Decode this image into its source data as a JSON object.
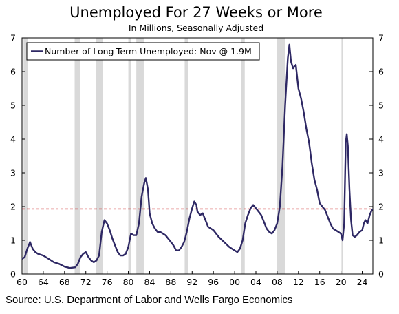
{
  "chart_data": {
    "type": "line",
    "title": "Unemployed For 27 Weeks or More",
    "subtitle": "In Millions, Seasonally Adjusted",
    "source": "Source: U.S. Department of Labor and Wells Fargo Economics",
    "xlim": [
      1960,
      2026
    ],
    "ylim": [
      0,
      7
    ],
    "y_ticks": [
      0,
      1,
      2,
      3,
      4,
      5,
      6,
      7
    ],
    "x_ticks": [
      1960,
      1964,
      1968,
      1972,
      1976,
      1980,
      1984,
      1988,
      1992,
      1996,
      2000,
      2004,
      2008,
      2012,
      2016,
      2020,
      2024
    ],
    "x_tick_labels": [
      "60",
      "64",
      "68",
      "72",
      "76",
      "80",
      "84",
      "88",
      "92",
      "96",
      "00",
      "04",
      "08",
      "12",
      "16",
      "20",
      "24"
    ],
    "colors": {
      "line": "#2e2864",
      "reference": "#cc2222",
      "recession": "#d9d9d9"
    },
    "legend": {
      "position": "top-left",
      "label": "Number of Long-Term Unemployed: Nov @ 1.9M"
    },
    "reference_line": {
      "y": 1.93
    },
    "recessions": [
      [
        1960.3,
        1961.1
      ],
      [
        1969.9,
        1970.9
      ],
      [
        1973.9,
        1975.2
      ],
      [
        1980.0,
        1980.5
      ],
      [
        1981.5,
        1982.9
      ],
      [
        1990.6,
        1991.2
      ],
      [
        2001.2,
        2001.9
      ],
      [
        2007.9,
        2009.5
      ],
      [
        2020.1,
        2020.3
      ]
    ],
    "series": [
      {
        "name": "Number of Long-Term Unemployed",
        "x": [
          1960.0,
          1960.5,
          1961.0,
          1961.5,
          1962.0,
          1962.5,
          1963.0,
          1964.0,
          1965.0,
          1966.0,
          1967.0,
          1968.0,
          1969.0,
          1970.0,
          1970.5,
          1971.0,
          1971.5,
          1972.0,
          1972.5,
          1973.0,
          1973.5,
          1974.0,
          1974.5,
          1975.0,
          1975.5,
          1976.0,
          1976.5,
          1977.0,
          1977.5,
          1978.0,
          1978.5,
          1979.0,
          1979.5,
          1980.0,
          1980.5,
          1981.0,
          1981.5,
          1982.0,
          1982.5,
          1983.0,
          1983.3,
          1983.7,
          1984.0,
          1984.5,
          1985.0,
          1985.5,
          1986.0,
          1987.0,
          1988.0,
          1988.5,
          1989.0,
          1989.5,
          1990.0,
          1990.5,
          1991.0,
          1991.5,
          1992.0,
          1992.4,
          1992.8,
          1993.0,
          1993.5,
          1994.0,
          1994.5,
          1995.0,
          1996.0,
          1997.0,
          1998.0,
          1999.0,
          2000.0,
          2000.5,
          2001.0,
          2001.5,
          2002.0,
          2002.5,
          2003.0,
          2003.5,
          2004.0,
          2004.5,
          2005.0,
          2005.5,
          2006.0,
          2006.5,
          2007.0,
          2007.5,
          2008.0,
          2008.5,
          2009.0,
          2009.5,
          2010.0,
          2010.3,
          2010.6,
          2011.0,
          2011.5,
          2012.0,
          2012.5,
          2013.0,
          2013.5,
          2014.0,
          2014.5,
          2015.0,
          2015.5,
          2016.0,
          2016.5,
          2017.0,
          2017.5,
          2018.0,
          2018.5,
          2019.0,
          2019.5,
          2020.0,
          2020.3,
          2020.6,
          2020.9,
          2021.1,
          2021.3,
          2021.6,
          2021.9,
          2022.2,
          2022.6,
          2023.0,
          2023.5,
          2024.0,
          2024.3,
          2024.6,
          2025.0,
          2025.4,
          2025.9
        ],
        "values": [
          0.45,
          0.5,
          0.75,
          0.95,
          0.75,
          0.65,
          0.6,
          0.55,
          0.45,
          0.35,
          0.3,
          0.22,
          0.18,
          0.2,
          0.3,
          0.5,
          0.6,
          0.65,
          0.5,
          0.4,
          0.35,
          0.4,
          0.55,
          1.25,
          1.6,
          1.5,
          1.3,
          1.05,
          0.85,
          0.65,
          0.55,
          0.55,
          0.6,
          0.8,
          1.2,
          1.15,
          1.15,
          1.5,
          2.3,
          2.7,
          2.85,
          2.5,
          1.8,
          1.5,
          1.35,
          1.25,
          1.25,
          1.15,
          0.95,
          0.85,
          0.7,
          0.7,
          0.8,
          0.95,
          1.25,
          1.65,
          1.95,
          2.15,
          2.05,
          1.85,
          1.75,
          1.8,
          1.6,
          1.4,
          1.3,
          1.1,
          0.95,
          0.8,
          0.7,
          0.65,
          0.75,
          1.0,
          1.5,
          1.75,
          1.95,
          2.05,
          1.95,
          1.85,
          1.75,
          1.55,
          1.35,
          1.25,
          1.2,
          1.3,
          1.5,
          2.0,
          3.2,
          5.0,
          6.4,
          6.8,
          6.3,
          6.1,
          6.2,
          5.5,
          5.2,
          4.8,
          4.3,
          3.9,
          3.3,
          2.8,
          2.5,
          2.1,
          2.0,
          1.9,
          1.7,
          1.5,
          1.35,
          1.3,
          1.25,
          1.2,
          1.0,
          1.5,
          3.9,
          4.15,
          3.8,
          2.5,
          1.6,
          1.15,
          1.1,
          1.15,
          1.25,
          1.3,
          1.5,
          1.6,
          1.5,
          1.75,
          1.93
        ]
      }
    ]
  }
}
